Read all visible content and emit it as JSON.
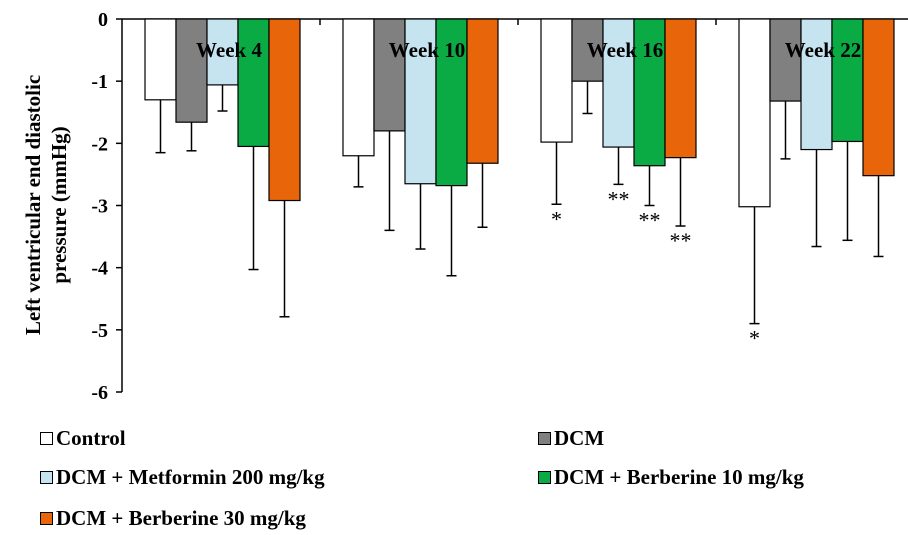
{
  "chart_data": {
    "type": "bar",
    "ylabel": "Left ventricular  end diastolic pressure  (mmHg)",
    "ylim": [
      -6,
      0
    ],
    "yticks": [
      "0",
      "-1",
      "-2",
      "-3",
      "-4",
      "-5",
      "-6"
    ],
    "ytick_values": [
      0,
      -1,
      -2,
      -3,
      -4,
      -5,
      -6
    ],
    "categories": [
      "Week 4",
      "Week 10",
      "Week 16",
      "Week 22"
    ],
    "grid": false,
    "legend_position": "bottom",
    "series": [
      {
        "name": "Control",
        "color": "#ffffff",
        "values": [
          -1.3,
          -2.2,
          -1.98,
          -3.02
        ],
        "errors": [
          0.85,
          0.5,
          1.0,
          1.88
        ],
        "significance": [
          "",
          "",
          "*",
          "*"
        ]
      },
      {
        "name": "DCM",
        "color": "#808080",
        "values": [
          -1.66,
          -1.8,
          -1.0,
          -1.32
        ],
        "errors": [
          0.46,
          1.6,
          0.52,
          0.93
        ],
        "significance": [
          "",
          "",
          "",
          ""
        ]
      },
      {
        "name": "DCM + Metformin 200 mg/kg",
        "color": "#c5e4f0",
        "values": [
          -1.06,
          -2.65,
          -2.06,
          -2.1
        ],
        "errors": [
          0.42,
          1.05,
          0.6,
          1.56
        ],
        "significance": [
          "",
          "",
          "**",
          ""
        ]
      },
      {
        "name": "DCM + Berberine 10 mg/kg",
        "color": "#0aaa45",
        "values": [
          -2.05,
          -2.68,
          -2.36,
          -1.97
        ],
        "errors": [
          1.98,
          1.45,
          0.64,
          1.59
        ],
        "significance": [
          "",
          "",
          "**",
          ""
        ]
      },
      {
        "name": "DCM + Berberine 30 mg/kg",
        "color": "#e8650a",
        "values": [
          -2.92,
          -2.32,
          -2.23,
          -2.52
        ],
        "errors": [
          1.87,
          1.03,
          1.1,
          1.3
        ],
        "significance": [
          "",
          "",
          "**",
          ""
        ]
      }
    ]
  }
}
